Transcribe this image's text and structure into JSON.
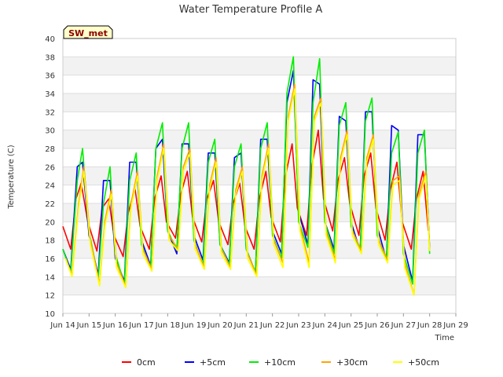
{
  "chart_data": {
    "type": "line",
    "title": "Water Temperature Profile A",
    "xlabel": "Time",
    "ylabel": "Temperature (C)",
    "badge": "SW_met",
    "ylim": [
      10,
      40
    ],
    "yticks": [
      10,
      12,
      14,
      16,
      18,
      20,
      22,
      24,
      26,
      28,
      30,
      32,
      34,
      36,
      38,
      40
    ],
    "xlim": [
      14,
      29
    ],
    "xticks": [
      {
        "x": 14,
        "label": "Jun 14"
      },
      {
        "x": 15,
        "label": "Jun 15"
      },
      {
        "x": 16,
        "label": "Jun 16"
      },
      {
        "x": 17,
        "label": "Jun 17"
      },
      {
        "x": 18,
        "label": "Jun 18"
      },
      {
        "x": 19,
        "label": "Jun 19"
      },
      {
        "x": 20,
        "label": "Jun 20"
      },
      {
        "x": 21,
        "label": "Jun 21"
      },
      {
        "x": 22,
        "label": "Jun 22"
      },
      {
        "x": 23,
        "label": "Jun 23"
      },
      {
        "x": 24,
        "label": "Jun 24"
      },
      {
        "x": 25,
        "label": "Jun 25"
      },
      {
        "x": 26,
        "label": "Jun 26"
      },
      {
        "x": 27,
        "label": "Jun 27"
      },
      {
        "x": 28,
        "label": "Jun 28"
      },
      {
        "x": 29,
        "label": "Jun 29"
      }
    ],
    "grid": true,
    "legend": "bottom",
    "series": [
      {
        "name": "0cm",
        "color": "#ff0000",
        "x": [
          14.0,
          14.3,
          14.5,
          14.7,
          14.95,
          15.3,
          15.5,
          15.75,
          15.95,
          16.3,
          16.5,
          16.75,
          16.95,
          17.3,
          17.5,
          17.75,
          17.95,
          18.3,
          18.5,
          18.75,
          18.95,
          19.3,
          19.5,
          19.75,
          19.95,
          20.3,
          20.5,
          20.75,
          20.95,
          21.3,
          21.5,
          21.75,
          21.95,
          22.3,
          22.5,
          22.75,
          22.95,
          23.3,
          23.5,
          23.75,
          23.95,
          24.3,
          24.5,
          24.75,
          24.95,
          25.3,
          25.5,
          25.75,
          25.95,
          26.3,
          26.5,
          26.75,
          26.95,
          27.3,
          27.5,
          27.75,
          27.95
        ],
        "y": [
          19.5,
          17.0,
          22.5,
          24.2,
          20.0,
          16.8,
          21.5,
          22.5,
          18.5,
          16.2,
          21.0,
          23.7,
          19.5,
          17.0,
          22.5,
          25.0,
          20.0,
          18.2,
          23.0,
          25.5,
          20.5,
          17.8,
          22.5,
          24.5,
          20.0,
          17.5,
          22.0,
          24.2,
          19.5,
          17.0,
          22.5,
          25.5,
          20.5,
          17.8,
          25.0,
          28.5,
          21.5,
          18.5,
          26.0,
          30.0,
          22.5,
          19.0,
          24.5,
          27.0,
          22.0,
          18.5,
          25.0,
          27.5,
          21.5,
          18.0,
          23.5,
          26.5,
          20.0,
          17.0,
          22.5,
          25.5,
          19.0
        ]
      },
      {
        "name": "+5cm",
        "color": "#0000ff",
        "x": [
          14.0,
          14.3,
          14.55,
          14.75,
          15.0,
          15.35,
          15.55,
          15.8,
          16.0,
          16.35,
          16.55,
          16.8,
          17.0,
          17.35,
          17.55,
          17.8,
          18.0,
          18.35,
          18.55,
          18.8,
          19.0,
          19.35,
          19.55,
          19.8,
          20.0,
          20.35,
          20.55,
          20.8,
          21.0,
          21.35,
          21.55,
          21.8,
          22.0,
          22.35,
          22.55,
          22.8,
          23.0,
          23.35,
          23.55,
          23.8,
          24.0,
          24.35,
          24.55,
          24.8,
          25.0,
          25.35,
          25.55,
          25.8,
          26.0,
          26.35,
          26.55,
          26.8,
          27.0,
          27.35,
          27.55,
          27.8,
          28.0
        ],
        "y": [
          17.0,
          14.8,
          26.0,
          26.5,
          18.5,
          14.2,
          24.5,
          24.5,
          16.0,
          13.5,
          26.5,
          26.5,
          18.0,
          15.2,
          28.0,
          29.0,
          19.0,
          16.5,
          28.5,
          28.5,
          18.5,
          15.8,
          27.5,
          27.5,
          17.5,
          15.5,
          27.0,
          27.5,
          17.0,
          14.5,
          29.0,
          29.0,
          19.0,
          16.5,
          33.0,
          36.5,
          21.0,
          17.5,
          35.5,
          35.0,
          20.0,
          17.0,
          31.5,
          31.0,
          20.0,
          16.8,
          32.0,
          32.0,
          19.5,
          15.8,
          30.5,
          30.0,
          17.5,
          13.5,
          29.5,
          29.5,
          17.0
        ]
      },
      {
        "name": "+10cm",
        "color": "#00ee00",
        "x": [
          14.0,
          14.3,
          14.55,
          14.75,
          15.0,
          15.35,
          15.55,
          15.8,
          16.0,
          16.35,
          16.55,
          16.8,
          17.0,
          17.35,
          17.55,
          17.8,
          18.0,
          18.35,
          18.55,
          18.8,
          19.0,
          19.35,
          19.55,
          19.8,
          20.0,
          20.35,
          20.55,
          20.8,
          21.0,
          21.35,
          21.55,
          21.8,
          22.0,
          22.35,
          22.55,
          22.8,
          23.0,
          23.35,
          23.55,
          23.8,
          24.0,
          24.35,
          24.55,
          24.8,
          25.0,
          25.35,
          25.55,
          25.8,
          26.0,
          26.35,
          26.55,
          26.8,
          27.0,
          27.35,
          27.55,
          27.8,
          28.0
        ],
        "y": [
          17.0,
          14.5,
          24.5,
          28.0,
          19.0,
          13.8,
          22.0,
          26.0,
          16.5,
          13.2,
          24.5,
          27.5,
          17.5,
          15.0,
          28.0,
          30.8,
          19.0,
          17.0,
          28.0,
          30.8,
          18.0,
          15.2,
          26.5,
          29.0,
          17.5,
          15.3,
          26.0,
          28.5,
          17.0,
          14.5,
          28.0,
          30.8,
          18.5,
          16.0,
          34.0,
          38.0,
          20.0,
          17.2,
          33.0,
          37.8,
          20.0,
          16.5,
          30.5,
          33.0,
          19.5,
          16.8,
          31.0,
          33.5,
          18.5,
          15.8,
          27.5,
          29.8,
          16.5,
          13.2,
          27.5,
          30.0,
          16.5
        ]
      },
      {
        "name": "+30cm",
        "color": "#ffa500",
        "x": [
          14.1,
          14.35,
          14.6,
          14.8,
          15.05,
          15.4,
          15.6,
          15.85,
          16.05,
          16.4,
          16.6,
          16.85,
          17.05,
          17.4,
          17.6,
          17.85,
          18.05,
          18.4,
          18.6,
          18.85,
          19.05,
          19.4,
          19.6,
          19.85,
          20.05,
          20.4,
          20.6,
          20.85,
          21.05,
          21.4,
          21.6,
          21.85,
          22.05,
          22.4,
          22.6,
          22.85,
          23.05,
          23.4,
          23.6,
          23.85,
          24.05,
          24.4,
          24.6,
          24.85,
          25.05,
          25.4,
          25.6,
          25.85,
          26.05,
          26.4,
          26.6,
          26.85,
          27.05,
          27.4,
          27.6,
          27.85,
          28.0
        ],
        "y": [
          16.0,
          14.2,
          22.0,
          26.0,
          18.0,
          13.2,
          20.0,
          23.5,
          15.5,
          12.9,
          22.0,
          25.5,
          17.0,
          14.8,
          25.0,
          28.5,
          18.5,
          17.0,
          26.0,
          28.0,
          17.5,
          15.0,
          24.0,
          27.0,
          17.0,
          15.0,
          23.5,
          26.0,
          16.5,
          14.2,
          25.0,
          28.5,
          18.0,
          15.5,
          31.5,
          35.0,
          19.5,
          15.5,
          31.5,
          33.5,
          19.0,
          15.8,
          27.0,
          30.0,
          19.0,
          16.8,
          27.0,
          29.5,
          18.0,
          15.8,
          24.5,
          25.0,
          15.5,
          12.0,
          23.0,
          25.5,
          17.0
        ]
      },
      {
        "name": "+50cm",
        "color": "#ffff00",
        "x": [
          14.1,
          14.35,
          14.6,
          14.8,
          15.05,
          15.4,
          15.6,
          15.85,
          16.05,
          16.4,
          16.6,
          16.85,
          17.05,
          17.4,
          17.6,
          17.85,
          18.05,
          18.4,
          18.6,
          18.85,
          19.05,
          19.4,
          19.6,
          19.85,
          20.05,
          20.4,
          20.6,
          20.85,
          21.05,
          21.4,
          21.6,
          21.85,
          22.05,
          22.4,
          22.6,
          22.85,
          23.05,
          23.4,
          23.6,
          23.85,
          24.05,
          24.4,
          24.6,
          24.85,
          25.05,
          25.4,
          25.6,
          25.85,
          26.05,
          26.4,
          26.6,
          26.85,
          27.05,
          27.4,
          27.6,
          27.85,
          28.0
        ],
        "y": [
          16.0,
          14.0,
          21.5,
          25.5,
          17.5,
          13.0,
          19.5,
          23.0,
          15.0,
          12.8,
          21.5,
          25.0,
          16.5,
          14.6,
          24.5,
          28.0,
          18.0,
          16.8,
          25.5,
          27.5,
          17.0,
          14.8,
          23.5,
          26.5,
          16.5,
          14.8,
          23.0,
          25.5,
          16.0,
          14.0,
          24.5,
          28.0,
          17.5,
          15.0,
          31.0,
          34.5,
          19.0,
          15.0,
          31.0,
          33.0,
          18.5,
          15.5,
          26.5,
          29.5,
          18.5,
          16.5,
          26.5,
          29.0,
          17.5,
          15.5,
          24.0,
          24.5,
          15.0,
          12.0,
          22.5,
          25.0,
          16.8
        ]
      }
    ]
  }
}
